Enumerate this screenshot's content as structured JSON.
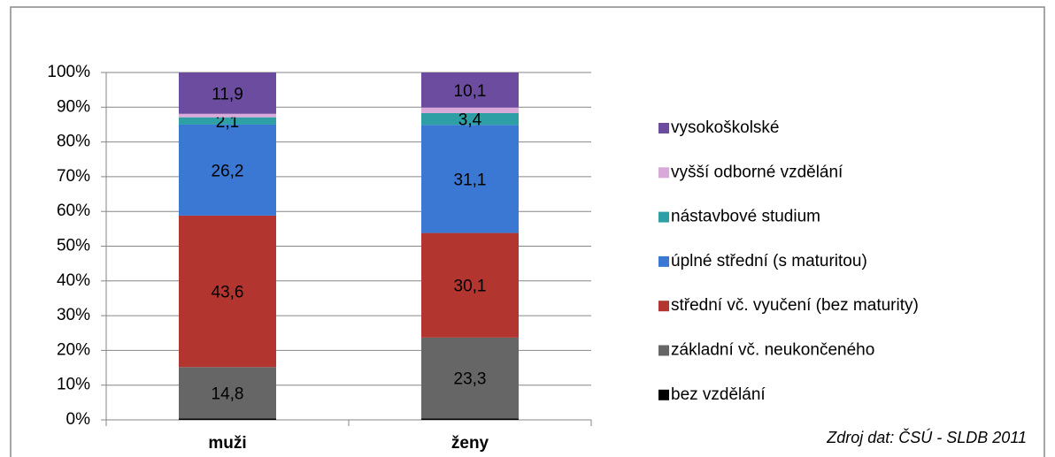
{
  "chart_data": {
    "type": "stacked_bar_100",
    "categories": [
      "muži",
      "ženy"
    ],
    "series": [
      {
        "name": "bez vzdělání",
        "color": "#000000",
        "values": [
          0.4,
          0.4
        ],
        "value_labels": [
          null,
          null
        ]
      },
      {
        "name": "základní vč. neukončeného",
        "color": "#666666",
        "values": [
          14.8,
          23.3
        ],
        "value_labels": [
          "14,8",
          "23,3"
        ]
      },
      {
        "name": "střední vč. vyučení (bez maturity)",
        "color": "#b2352f",
        "values": [
          43.6,
          30.1
        ],
        "value_labels": [
          "43,6",
          "30,1"
        ]
      },
      {
        "name": "úplné střední (s maturitou)",
        "color": "#3b78d4",
        "values": [
          26.2,
          31.1
        ],
        "value_labels": [
          "26,2",
          "31,1"
        ]
      },
      {
        "name": "nástavbové studium",
        "color": "#2f9fa6",
        "values": [
          2.1,
          3.4
        ],
        "value_labels": [
          "2,1",
          "3,4"
        ]
      },
      {
        "name": "vyšší odborné vzdělání",
        "color": "#d9aad9",
        "values": [
          1.0,
          1.6
        ],
        "value_labels": [
          null,
          null
        ]
      },
      {
        "name": "vysokoškolské",
        "color": "#6c4c9e",
        "values": [
          11.9,
          10.1
        ],
        "value_labels": [
          "11,9",
          "10,1"
        ]
      }
    ],
    "ylim": [
      0,
      100
    ],
    "yticks": [
      {
        "value": 0,
        "label": "0%"
      },
      {
        "value": 10,
        "label": "10%"
      },
      {
        "value": 20,
        "label": "20%"
      },
      {
        "value": 30,
        "label": "30%"
      },
      {
        "value": 40,
        "label": "40%"
      },
      {
        "value": 50,
        "label": "50%"
      },
      {
        "value": 60,
        "label": "60%"
      },
      {
        "value": 70,
        "label": "70%"
      },
      {
        "value": 80,
        "label": "80%"
      },
      {
        "value": 90,
        "label": "90%"
      },
      {
        "value": 100,
        "label": "100%"
      }
    ],
    "grid": true,
    "legend": "right",
    "source": "Zdroj dat: ČSÚ - SLDB 2011"
  }
}
